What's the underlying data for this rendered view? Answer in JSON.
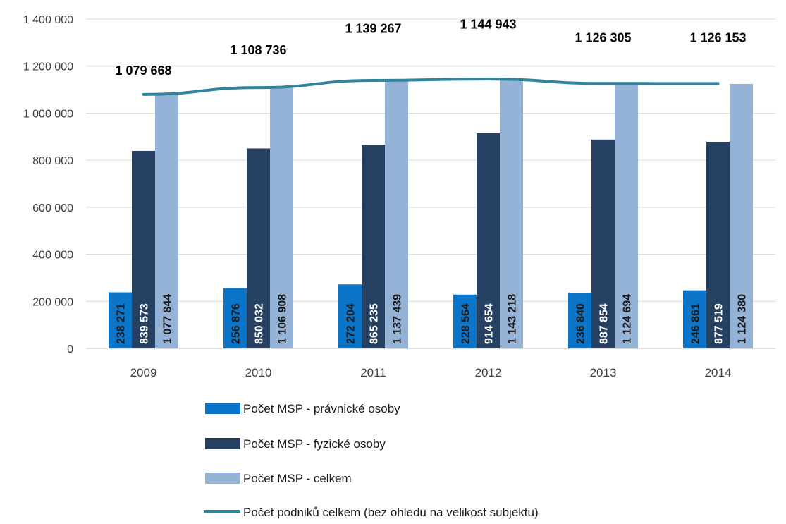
{
  "chart_data": {
    "type": "bar",
    "title": "",
    "xlabel": "",
    "ylabel": "",
    "categories": [
      "2009",
      "2010",
      "2011",
      "2012",
      "2013",
      "2014"
    ],
    "ylim": [
      0,
      1400000
    ],
    "yticks": [
      0,
      200000,
      400000,
      600000,
      800000,
      1000000,
      1200000,
      1400000
    ],
    "ytick_labels": [
      "0",
      "200 000",
      "400 000",
      "600 000",
      "800 000",
      "1 000 000",
      "1 200 000",
      "1 400 000"
    ],
    "grid": true,
    "legend_position": "bottom",
    "series": [
      {
        "name": "Počet MSP - právnické osoby",
        "kind": "bar",
        "color": "#0b75c9",
        "label_color": "#1a1a1a",
        "values": [
          238271,
          256876,
          272204,
          228564,
          236840,
          246861
        ],
        "labels": [
          "238 271",
          "256 876",
          "272 204",
          "228 564",
          "236 840",
          "246 861"
        ]
      },
      {
        "name": "Počet MSP - fyzické osoby",
        "kind": "bar",
        "color": "#254061",
        "label_color": "#ffffff",
        "values": [
          839573,
          850032,
          865235,
          914654,
          887854,
          877519
        ],
        "labels": [
          "839 573",
          "850 032",
          "865 235",
          "914 654",
          "887 854",
          "877 519"
        ]
      },
      {
        "name": "Počet MSP - celkem",
        "kind": "bar",
        "color": "#95b3d7",
        "label_color": "#1a1a1a",
        "values": [
          1077844,
          1106908,
          1137439,
          1143218,
          1124694,
          1124380
        ],
        "labels": [
          "1 077 844",
          "1 106 908",
          "1 137 439",
          "1 143 218",
          "1 124 694",
          "1 124 380"
        ]
      },
      {
        "name": "Počet podniků celkem (bez ohledu na velikost subjektu)",
        "kind": "line",
        "color": "#31849b",
        "label_color": "#000000",
        "values": [
          1079668,
          1108736,
          1139267,
          1144943,
          1126305,
          1126153
        ],
        "labels": [
          "1 079 668",
          "1 108 736",
          "1 139 267",
          "1 144 943",
          "1 126 305",
          "1 126 153"
        ]
      }
    ]
  }
}
